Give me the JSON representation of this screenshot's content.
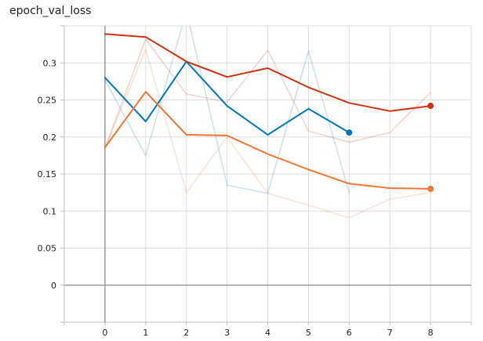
{
  "chart_data": {
    "type": "line",
    "title": "epoch_val_loss",
    "xlabel": "",
    "ylabel": "",
    "xlim": [
      -1,
      9
    ],
    "ylim": [
      -0.05,
      0.35
    ],
    "x_ticks": [
      0,
      1,
      2,
      3,
      4,
      5,
      6,
      7,
      8
    ],
    "y_ticks": [
      0,
      0.05,
      0.1,
      0.15,
      0.2,
      0.25,
      0.3
    ],
    "grid": true,
    "legend": "none",
    "series": [
      {
        "color": "#0077bb",
        "smoothed": false,
        "values": [
          [
            0,
            0.277
          ],
          [
            1,
            0.175
          ],
          [
            2,
            0.37
          ],
          [
            3,
            0.135
          ],
          [
            4,
            0.124
          ],
          [
            5,
            0.316
          ],
          [
            6,
            0.125
          ]
        ]
      },
      {
        "color": "#cc3311",
        "smoothed": false,
        "values": [
          [
            0,
            0.185
          ],
          [
            1,
            0.332
          ],
          [
            2,
            0.258
          ],
          [
            3,
            0.247
          ],
          [
            4,
            0.317
          ],
          [
            5,
            0.208
          ],
          [
            6,
            0.193
          ],
          [
            7,
            0.206
          ],
          [
            8,
            0.26
          ]
        ]
      },
      {
        "color": "#ee7733",
        "smoothed": false,
        "values": [
          [
            0,
            0.185
          ],
          [
            1,
            0.318
          ],
          [
            2,
            0.125
          ],
          [
            3,
            0.2
          ],
          [
            4,
            0.124
          ],
          [
            5,
            0.108
          ],
          [
            6,
            0.091
          ],
          [
            7,
            0.116
          ],
          [
            8,
            0.125
          ]
        ]
      },
      {
        "color": "#0077bb",
        "smoothed": true,
        "values": [
          [
            0,
            0.28
          ],
          [
            1,
            0.221
          ],
          [
            2,
            0.302
          ],
          [
            3,
            0.242
          ],
          [
            4,
            0.203
          ],
          [
            5,
            0.238
          ],
          [
            6,
            0.206
          ]
        ]
      },
      {
        "color": "#cc3311",
        "smoothed": true,
        "values": [
          [
            0,
            0.339
          ],
          [
            1,
            0.335
          ],
          [
            2,
            0.302
          ],
          [
            3,
            0.281
          ],
          [
            4,
            0.293
          ],
          [
            5,
            0.267
          ],
          [
            6,
            0.246
          ],
          [
            7,
            0.235
          ],
          [
            8,
            0.242
          ]
        ]
      },
      {
        "color": "#ee7733",
        "smoothed": true,
        "values": [
          [
            0,
            0.186
          ],
          [
            1,
            0.261
          ],
          [
            2,
            0.203
          ],
          [
            3,
            0.202
          ],
          [
            4,
            0.177
          ],
          [
            5,
            0.156
          ],
          [
            6,
            0.137
          ],
          [
            7,
            0.131
          ],
          [
            8,
            0.13
          ]
        ]
      }
    ]
  }
}
